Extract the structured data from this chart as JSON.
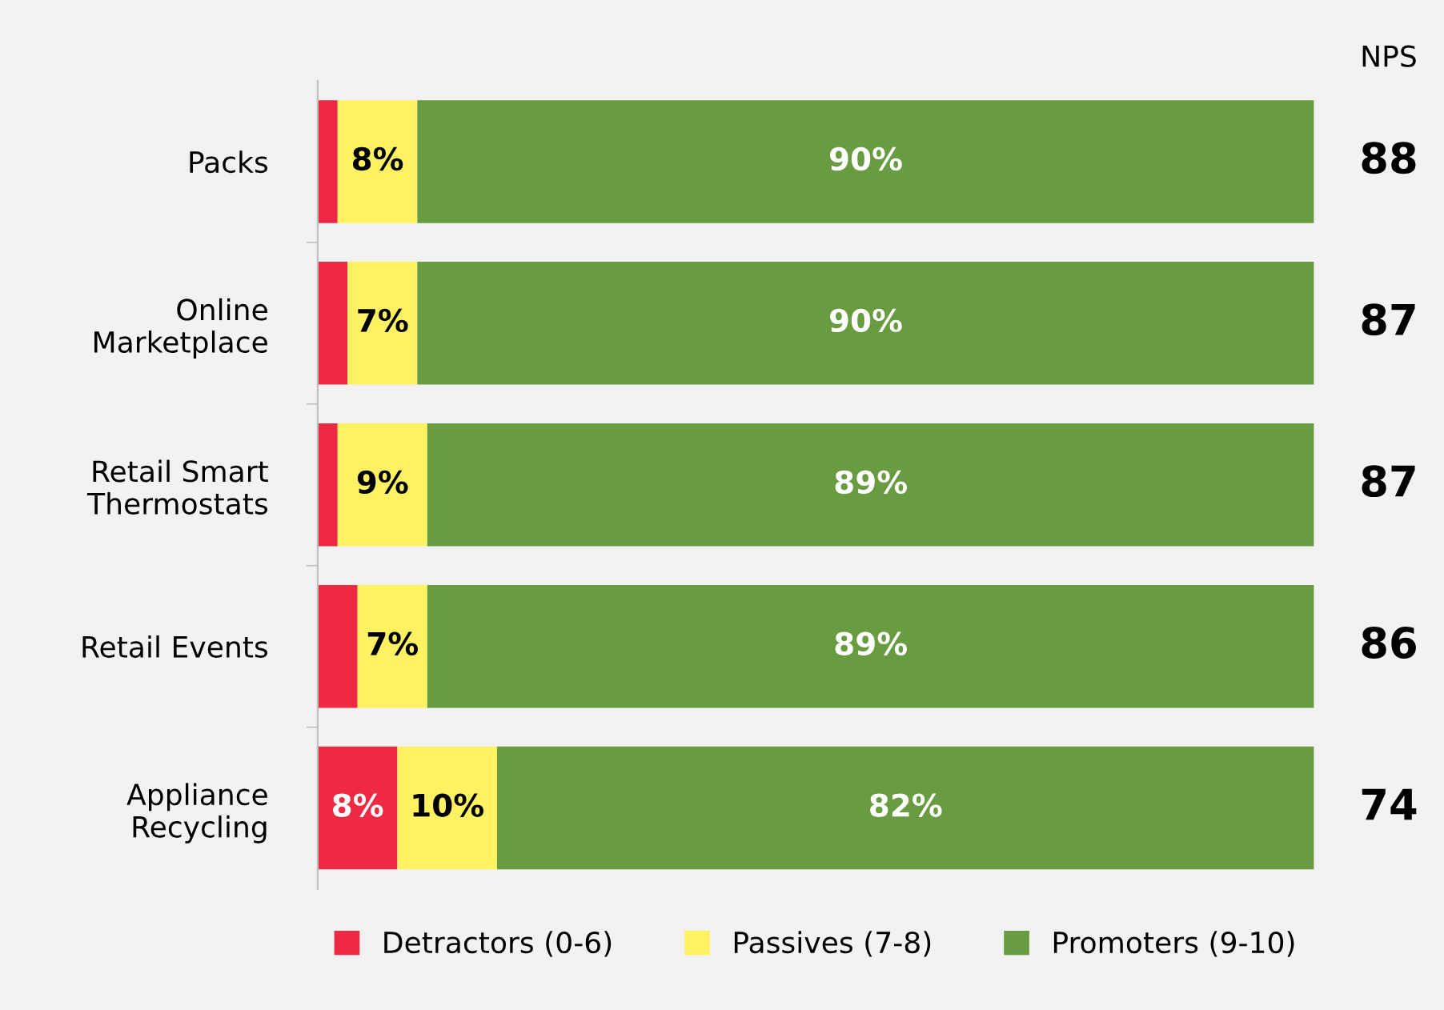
{
  "chart_data": {
    "type": "bar",
    "orientation": "horizontal",
    "stacked": true,
    "categories": [
      "Packs",
      "Online\nMarketplace",
      "Retail Smart\nThermostats",
      "Retail Events",
      "Appliance\nRecycling"
    ],
    "series": [
      {
        "name": "Detractors (0-6)",
        "color": "#ee2944",
        "values": [
          2,
          3,
          2,
          4,
          8
        ],
        "value_labels": [
          null,
          null,
          null,
          null,
          "8%"
        ]
      },
      {
        "name": "Passives (7-8)",
        "color": "#fff262",
        "values": [
          8,
          7,
          9,
          7,
          10
        ],
        "value_labels": [
          "8%",
          "7%",
          "9%",
          "7%",
          "10%"
        ]
      },
      {
        "name": "Promoters (9-10)",
        "color": "#699c41",
        "values": [
          90,
          90,
          89,
          89,
          82
        ],
        "value_labels": [
          "90%",
          "90%",
          "89%",
          "89%",
          "82%"
        ]
      }
    ],
    "annotations": [
      "NPS",
      "88",
      "87",
      "87",
      "86",
      "74"
    ],
    "legend": "bottom"
  }
}
